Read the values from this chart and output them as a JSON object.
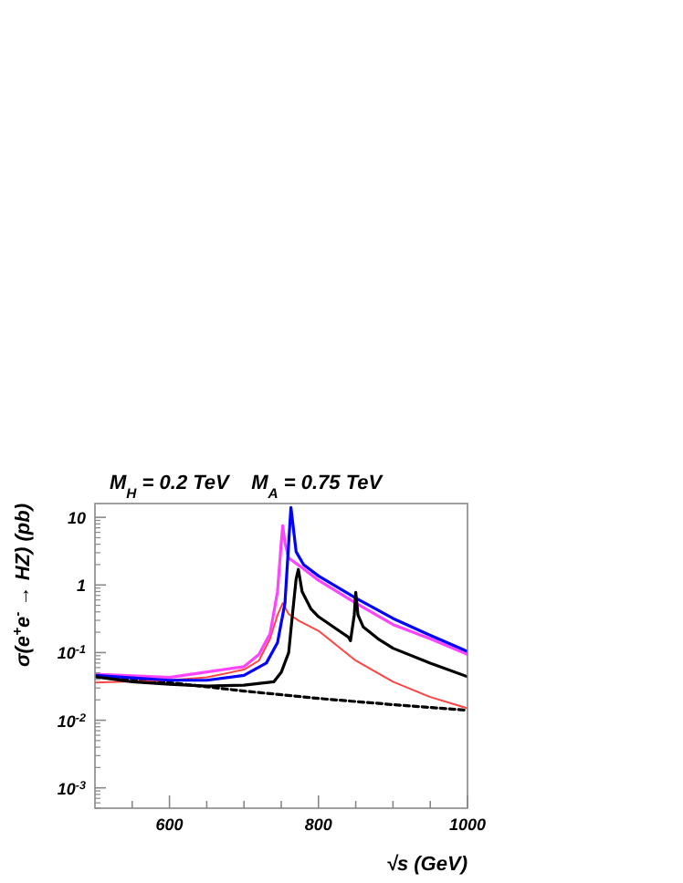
{
  "chart_data": {
    "type": "line",
    "title": "M$_{H}$ = 0.2 TeV    M$_{A}$ = 0.75 TeV",
    "xlabel": "√s (GeV)",
    "ylabel": "σ(e$^{+}$e$^{-}$ → HZ) (pb)",
    "log": "y",
    "grid": false,
    "xlim": [
      500,
      1000
    ],
    "xticks": [
      {
        "value": 550,
        "label": null
      },
      600,
      {
        "value": 650,
        "label": null
      },
      {
        "value": 700,
        "label": null
      },
      {
        "value": 750,
        "label": null
      },
      800,
      {
        "value": 850,
        "label": null
      },
      {
        "value": 900,
        "label": null
      },
      {
        "value": 950,
        "label": null
      },
      1000
    ],
    "ylim": [
      0.0005,
      16
    ],
    "yticks": [
      {
        "value": 0.001,
        "label": "10$^{-3}$"
      },
      {
        "value": 0.01,
        "label": "10$^{-2}$"
      },
      {
        "value": 0.1,
        "label": "10$^{-1}$"
      },
      1,
      10
    ],
    "series": [
      {
        "color": "#000000",
        "line_style": "dashed",
        "x": [
          500,
          600,
          700,
          800,
          900,
          1000
        ],
        "values": [
          0.046,
          0.036,
          0.027,
          0.021,
          0.017,
          0.014
        ]
      },
      {
        "color": "#ff4444",
        "line_style": "solid",
        "x": [
          500,
          600,
          650,
          700,
          720,
          735,
          745,
          752,
          760,
          775,
          800,
          850,
          900,
          950,
          1000
        ],
        "values": [
          0.036,
          0.039,
          0.043,
          0.056,
          0.076,
          0.16,
          0.36,
          0.54,
          0.37,
          0.29,
          0.21,
          0.076,
          0.037,
          0.022,
          0.015
        ]
      },
      {
        "color": "#ff44ff",
        "line_style": "solid",
        "x": [
          500,
          600,
          700,
          720,
          735,
          745,
          750,
          752,
          755,
          760,
          775,
          800,
          850,
          900,
          950,
          1000
        ],
        "values": [
          0.048,
          0.043,
          0.062,
          0.094,
          0.19,
          0.8,
          4.2,
          7.5,
          4.2,
          2.5,
          1.9,
          1.17,
          0.54,
          0.26,
          0.16,
          0.094
        ]
      },
      {
        "color": "#0000ff",
        "line_style": "solid",
        "x": [
          500,
          600,
          650,
          700,
          730,
          745,
          755,
          760,
          763,
          770,
          780,
          800,
          850,
          900,
          950,
          1000
        ],
        "values": [
          0.046,
          0.039,
          0.039,
          0.046,
          0.07,
          0.14,
          0.54,
          4.2,
          14,
          3.1,
          2.0,
          1.36,
          0.64,
          0.32,
          0.18,
          0.104
        ]
      },
      {
        "color": "#000000",
        "line_style": "solid",
        "x": [
          500,
          550,
          600,
          650,
          700,
          740,
          750,
          760,
          765,
          770,
          773,
          778,
          790,
          800,
          820,
          840,
          843,
          848,
          850,
          853,
          860,
          880,
          900,
          950,
          1000
        ],
        "values": [
          0.044,
          0.037,
          0.034,
          0.032,
          0.033,
          0.037,
          0.051,
          0.1,
          0.36,
          1.23,
          1.7,
          0.8,
          0.44,
          0.34,
          0.24,
          0.17,
          0.15,
          0.36,
          0.78,
          0.36,
          0.24,
          0.16,
          0.116,
          0.07,
          0.044
        ]
      }
    ]
  }
}
